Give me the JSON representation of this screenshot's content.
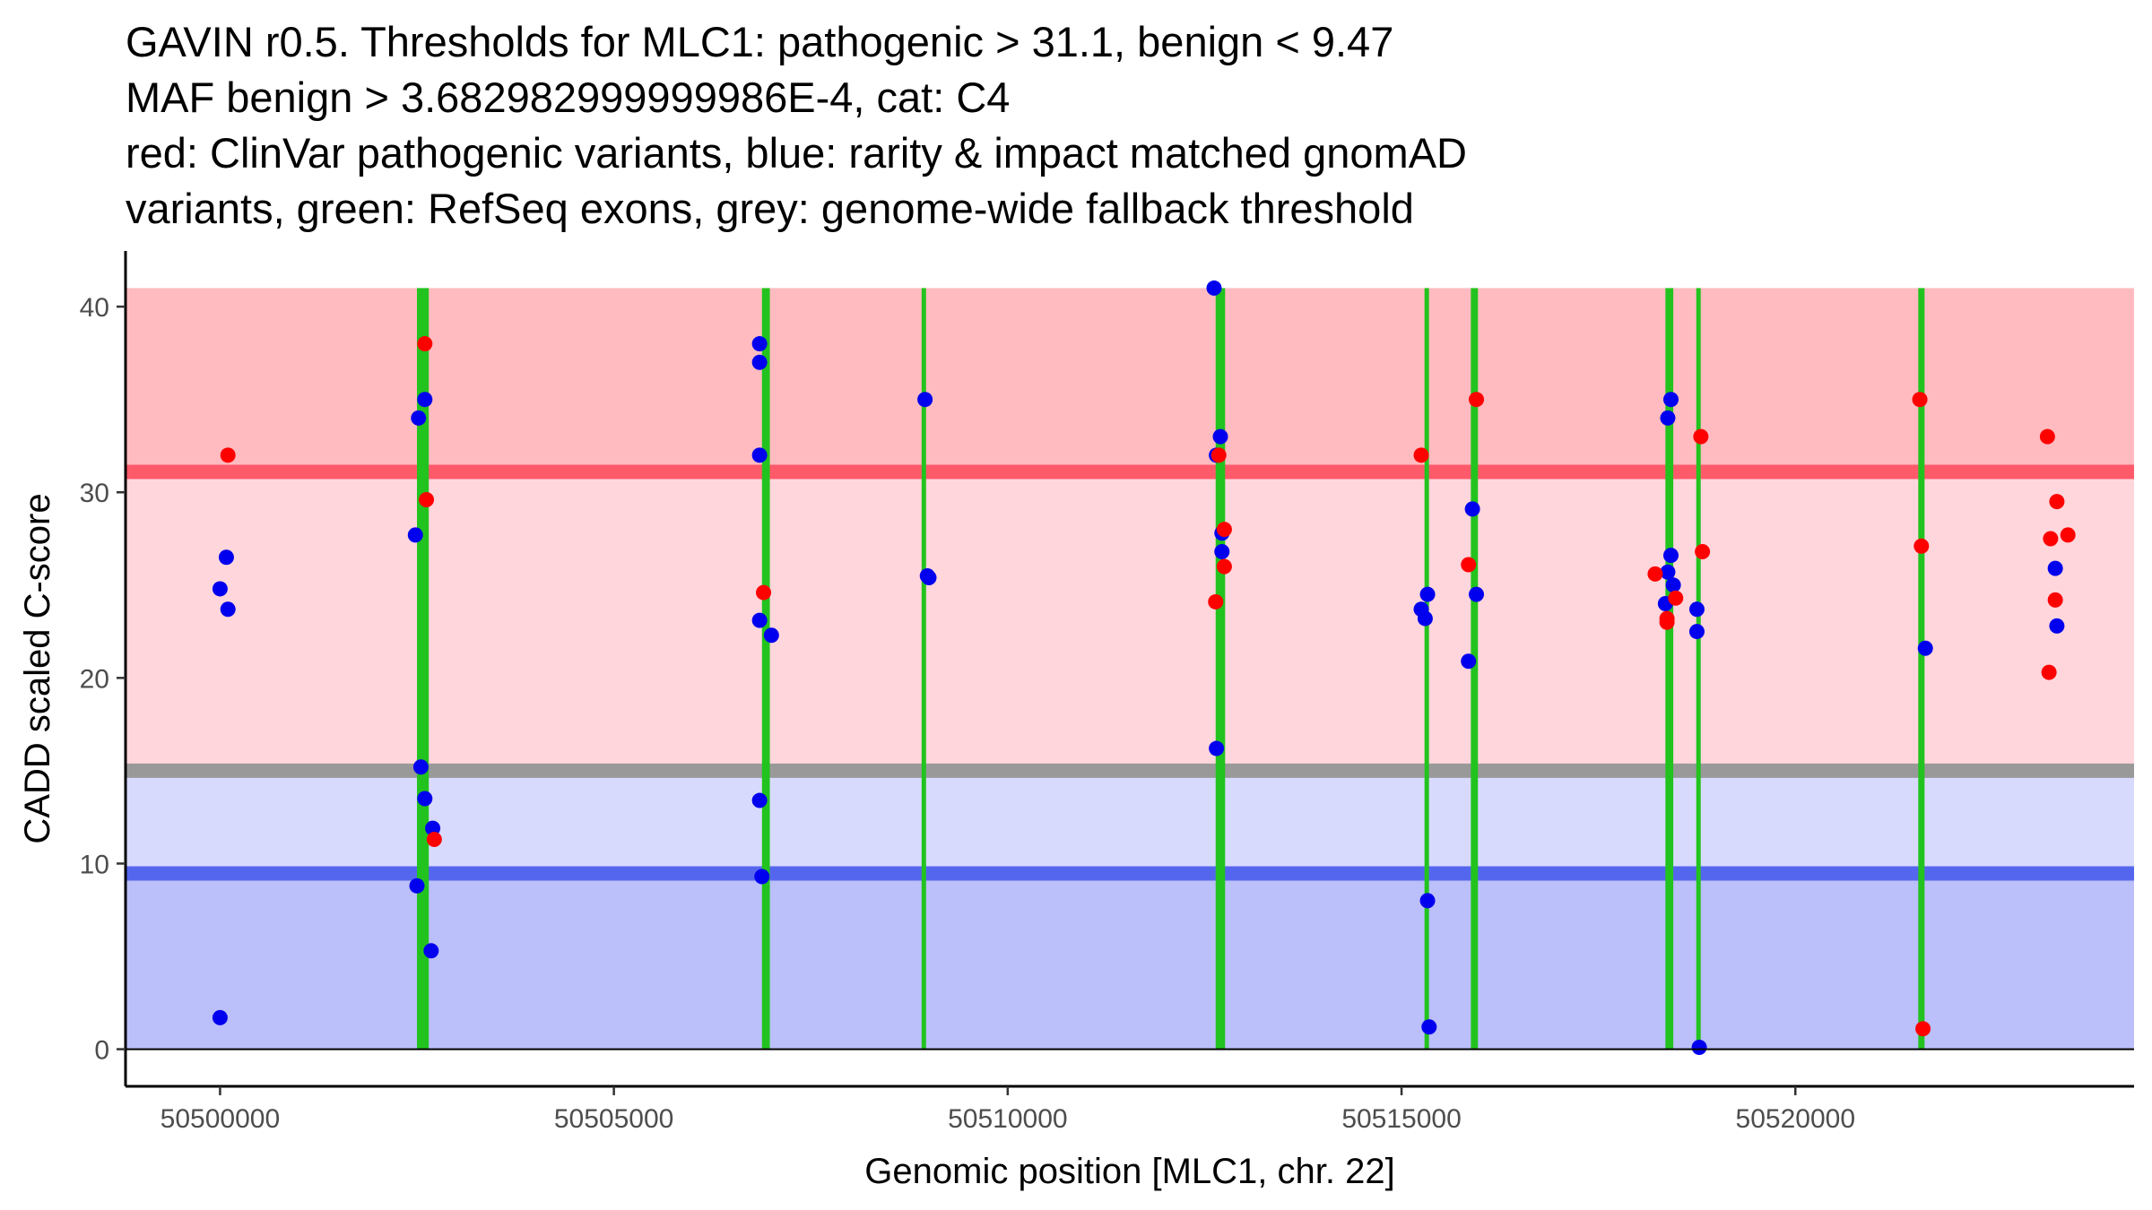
{
  "chart_data": {
    "type": "scatter",
    "title_lines": [
      "GAVIN r0.5. Thresholds for MLC1: pathogenic > 31.1, benign < 9.47",
      "MAF benign > 3.682982999999986E-4, cat: C4",
      "red: ClinVar pathogenic variants, blue: rarity & impact matched gnomAD",
      "variants, green: RefSeq exons, grey: genome-wide fallback threshold"
    ],
    "xlabel": "Genomic position [MLC1, chr. 22]",
    "ylabel": "CADD scaled C-score",
    "xlim": [
      50498800,
      50524300
    ],
    "ylim": [
      -2.0,
      43.0
    ],
    "x_ticks": [
      50500000,
      50505000,
      50510000,
      50515000,
      50520000
    ],
    "x_tick_labels": [
      "50500000",
      "50505000",
      "50510000",
      "50515000",
      "50520000"
    ],
    "y_ticks": [
      0,
      10,
      20,
      30,
      40
    ],
    "y_tick_labels": [
      "0",
      "10",
      "20",
      "30",
      "40"
    ],
    "bands": [
      {
        "name": "pathogenic-zone",
        "y0": 31.1,
        "y1": 41.0,
        "color": "#ffbbc0"
      },
      {
        "name": "uncertain-pathogenic-zone",
        "y0": 15.0,
        "y1": 31.1,
        "color": "#ffd6dc"
      },
      {
        "name": "uncertain-benign-zone",
        "y0": 9.47,
        "y1": 15.0,
        "color": "#d8dafd"
      },
      {
        "name": "benign-zone",
        "y0": 0.0,
        "y1": 9.47,
        "color": "#bbbffa"
      }
    ],
    "threshold_lines": [
      {
        "name": "pathogenic-threshold",
        "y": 31.1,
        "color": "#ff5a6a"
      },
      {
        "name": "fallback-threshold",
        "y": 15.0,
        "color": "#999999"
      },
      {
        "name": "benign-threshold",
        "y": 9.47,
        "color": "#5566ee"
      }
    ],
    "exons": [
      {
        "start": 50502500,
        "end": 50502650
      },
      {
        "start": 50506880,
        "end": 50506980
      },
      {
        "start": 50508920,
        "end": 50508950
      },
      {
        "start": 50512640,
        "end": 50512760
      },
      {
        "start": 50515300,
        "end": 50515340
      },
      {
        "start": 50515880,
        "end": 50515970
      },
      {
        "start": 50518350,
        "end": 50518450
      },
      {
        "start": 50518750,
        "end": 50518790
      },
      {
        "start": 50521560,
        "end": 50521640
      }
    ],
    "exon_color": "#22c31e",
    "series": [
      {
        "name": "gnomAD matched variants",
        "color": "#0000ee",
        "points": [
          [
            50500000,
            24.8
          ],
          [
            50500080,
            26.5
          ],
          [
            50500100,
            23.7
          ],
          [
            50500000,
            1.7
          ],
          [
            50502480,
            27.7
          ],
          [
            50502520,
            34.0
          ],
          [
            50502600,
            35.0
          ],
          [
            50502550,
            15.2
          ],
          [
            50502600,
            13.5
          ],
          [
            50502700,
            11.9
          ],
          [
            50502500,
            8.8
          ],
          [
            50502680,
            5.3
          ],
          [
            50506850,
            38.0
          ],
          [
            50506850,
            37.0
          ],
          [
            50506850,
            32.0
          ],
          [
            50506850,
            23.1
          ],
          [
            50507000,
            22.3
          ],
          [
            50506850,
            13.4
          ],
          [
            50506880,
            9.3
          ],
          [
            50508950,
            35.0
          ],
          [
            50508980,
            25.5
          ],
          [
            50509000,
            25.4
          ],
          [
            50512620,
            41.0
          ],
          [
            50512650,
            32.0
          ],
          [
            50512700,
            33.0
          ],
          [
            50512720,
            27.8
          ],
          [
            50512720,
            26.8
          ],
          [
            50512650,
            16.2
          ],
          [
            50515250,
            23.7
          ],
          [
            50515300,
            23.2
          ],
          [
            50515330,
            24.5
          ],
          [
            50515330,
            8.0
          ],
          [
            50515350,
            1.2
          ],
          [
            50515900,
            29.1
          ],
          [
            50515950,
            24.5
          ],
          [
            50515850,
            20.9
          ],
          [
            50518380,
            34.0
          ],
          [
            50518420,
            35.0
          ],
          [
            50518420,
            26.6
          ],
          [
            50518380,
            25.7
          ],
          [
            50518450,
            25.0
          ],
          [
            50518350,
            24.0
          ],
          [
            50518750,
            23.7
          ],
          [
            50518750,
            22.5
          ],
          [
            50518780,
            0.1
          ],
          [
            50521650,
            21.6
          ],
          [
            50523300,
            25.9
          ],
          [
            50523320,
            22.8
          ]
        ]
      },
      {
        "name": "ClinVar pathogenic variants",
        "color": "#ff0000",
        "points": [
          [
            50500100,
            32.0
          ],
          [
            50502600,
            38.0
          ],
          [
            50502620,
            29.6
          ],
          [
            50502720,
            11.3
          ],
          [
            50506900,
            24.6
          ],
          [
            50512680,
            32.0
          ],
          [
            50512640,
            24.1
          ],
          [
            50512750,
            28.0
          ],
          [
            50512750,
            26.0
          ],
          [
            50515250,
            32.0
          ],
          [
            50515850,
            26.1
          ],
          [
            50515950,
            35.0
          ],
          [
            50518220,
            25.6
          ],
          [
            50518370,
            23.2
          ],
          [
            50518370,
            23.0
          ],
          [
            50518480,
            24.3
          ],
          [
            50518800,
            33.0
          ],
          [
            50518820,
            26.8
          ],
          [
            50521580,
            35.0
          ],
          [
            50521600,
            27.1
          ],
          [
            50521620,
            1.1
          ],
          [
            50523200,
            33.0
          ],
          [
            50523240,
            27.5
          ],
          [
            50523320,
            29.5
          ],
          [
            50523460,
            27.7
          ],
          [
            50523300,
            24.2
          ],
          [
            50523220,
            20.3
          ]
        ]
      }
    ]
  }
}
